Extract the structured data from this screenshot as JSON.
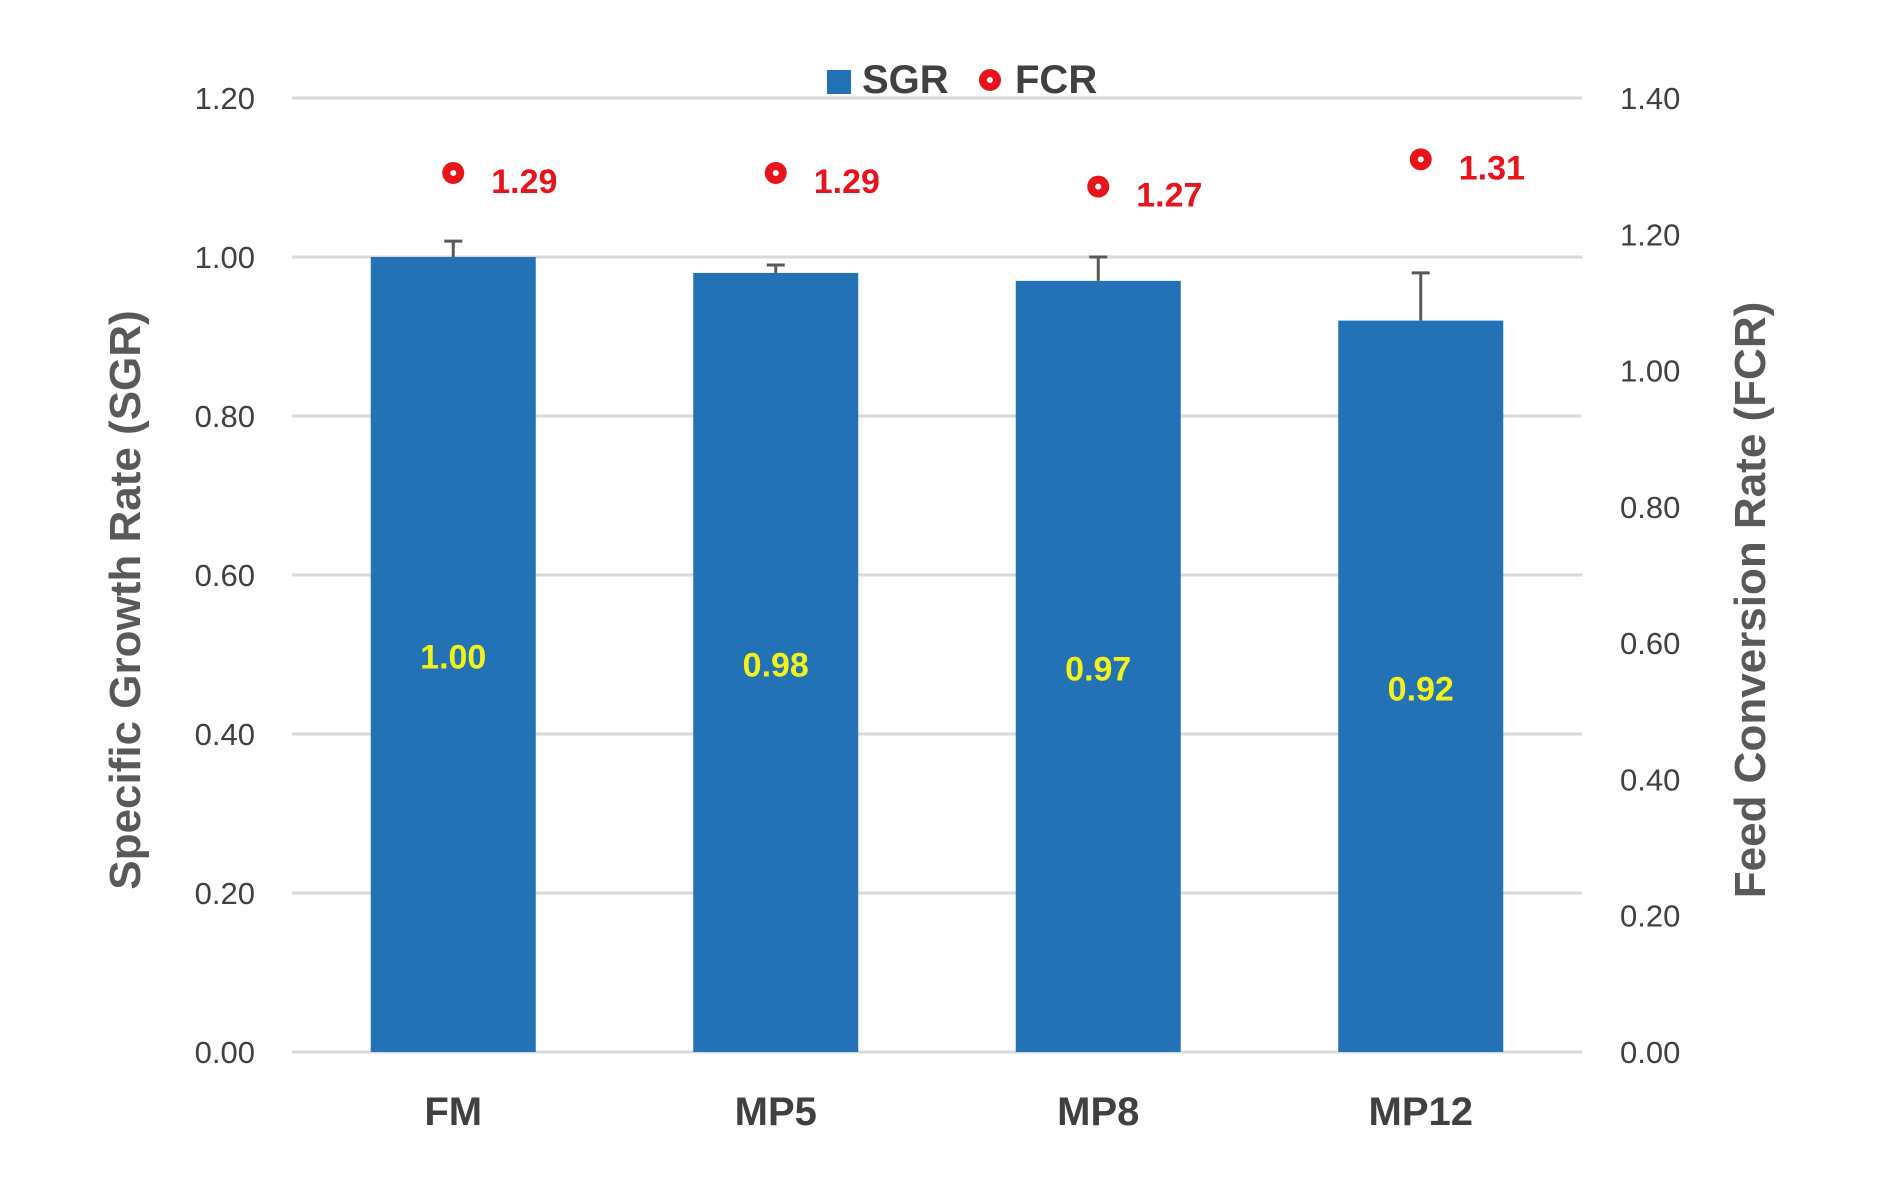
{
  "chart_data": {
    "type": "bar",
    "categories": [
      "FM",
      "MP5",
      "MP8",
      "MP12"
    ],
    "series": [
      {
        "name": "SGR",
        "type": "bar",
        "axis": "left",
        "values": [
          1.0,
          0.98,
          0.97,
          0.92
        ],
        "error": [
          0.02,
          0.01,
          0.03,
          0.06
        ],
        "labels": [
          "1.00",
          "0.98",
          "0.97",
          "0.92"
        ],
        "color": "#2372b5",
        "label_color": "#f2f21a"
      },
      {
        "name": "FCR",
        "type": "scatter",
        "axis": "right",
        "values": [
          1.29,
          1.29,
          1.27,
          1.31
        ],
        "labels": [
          "1.29",
          "1.29",
          "1.27",
          "1.31"
        ],
        "color": "#e8141b"
      }
    ],
    "ylabel": "Specific Growth Rate (SGR)",
    "y2label": "Feed Conversion Rate (FCR)",
    "ylim": [
      0,
      1.2
    ],
    "y2lim": [
      0,
      1.4
    ],
    "yticks": [
      "0.00",
      "0.20",
      "0.40",
      "0.60",
      "0.80",
      "1.00",
      "1.20"
    ],
    "y2ticks": [
      "0.00",
      "0.20",
      "0.40",
      "0.60",
      "0.80",
      "1.00",
      "1.20",
      "1.40"
    ],
    "grid": true,
    "legend": "top-center"
  }
}
